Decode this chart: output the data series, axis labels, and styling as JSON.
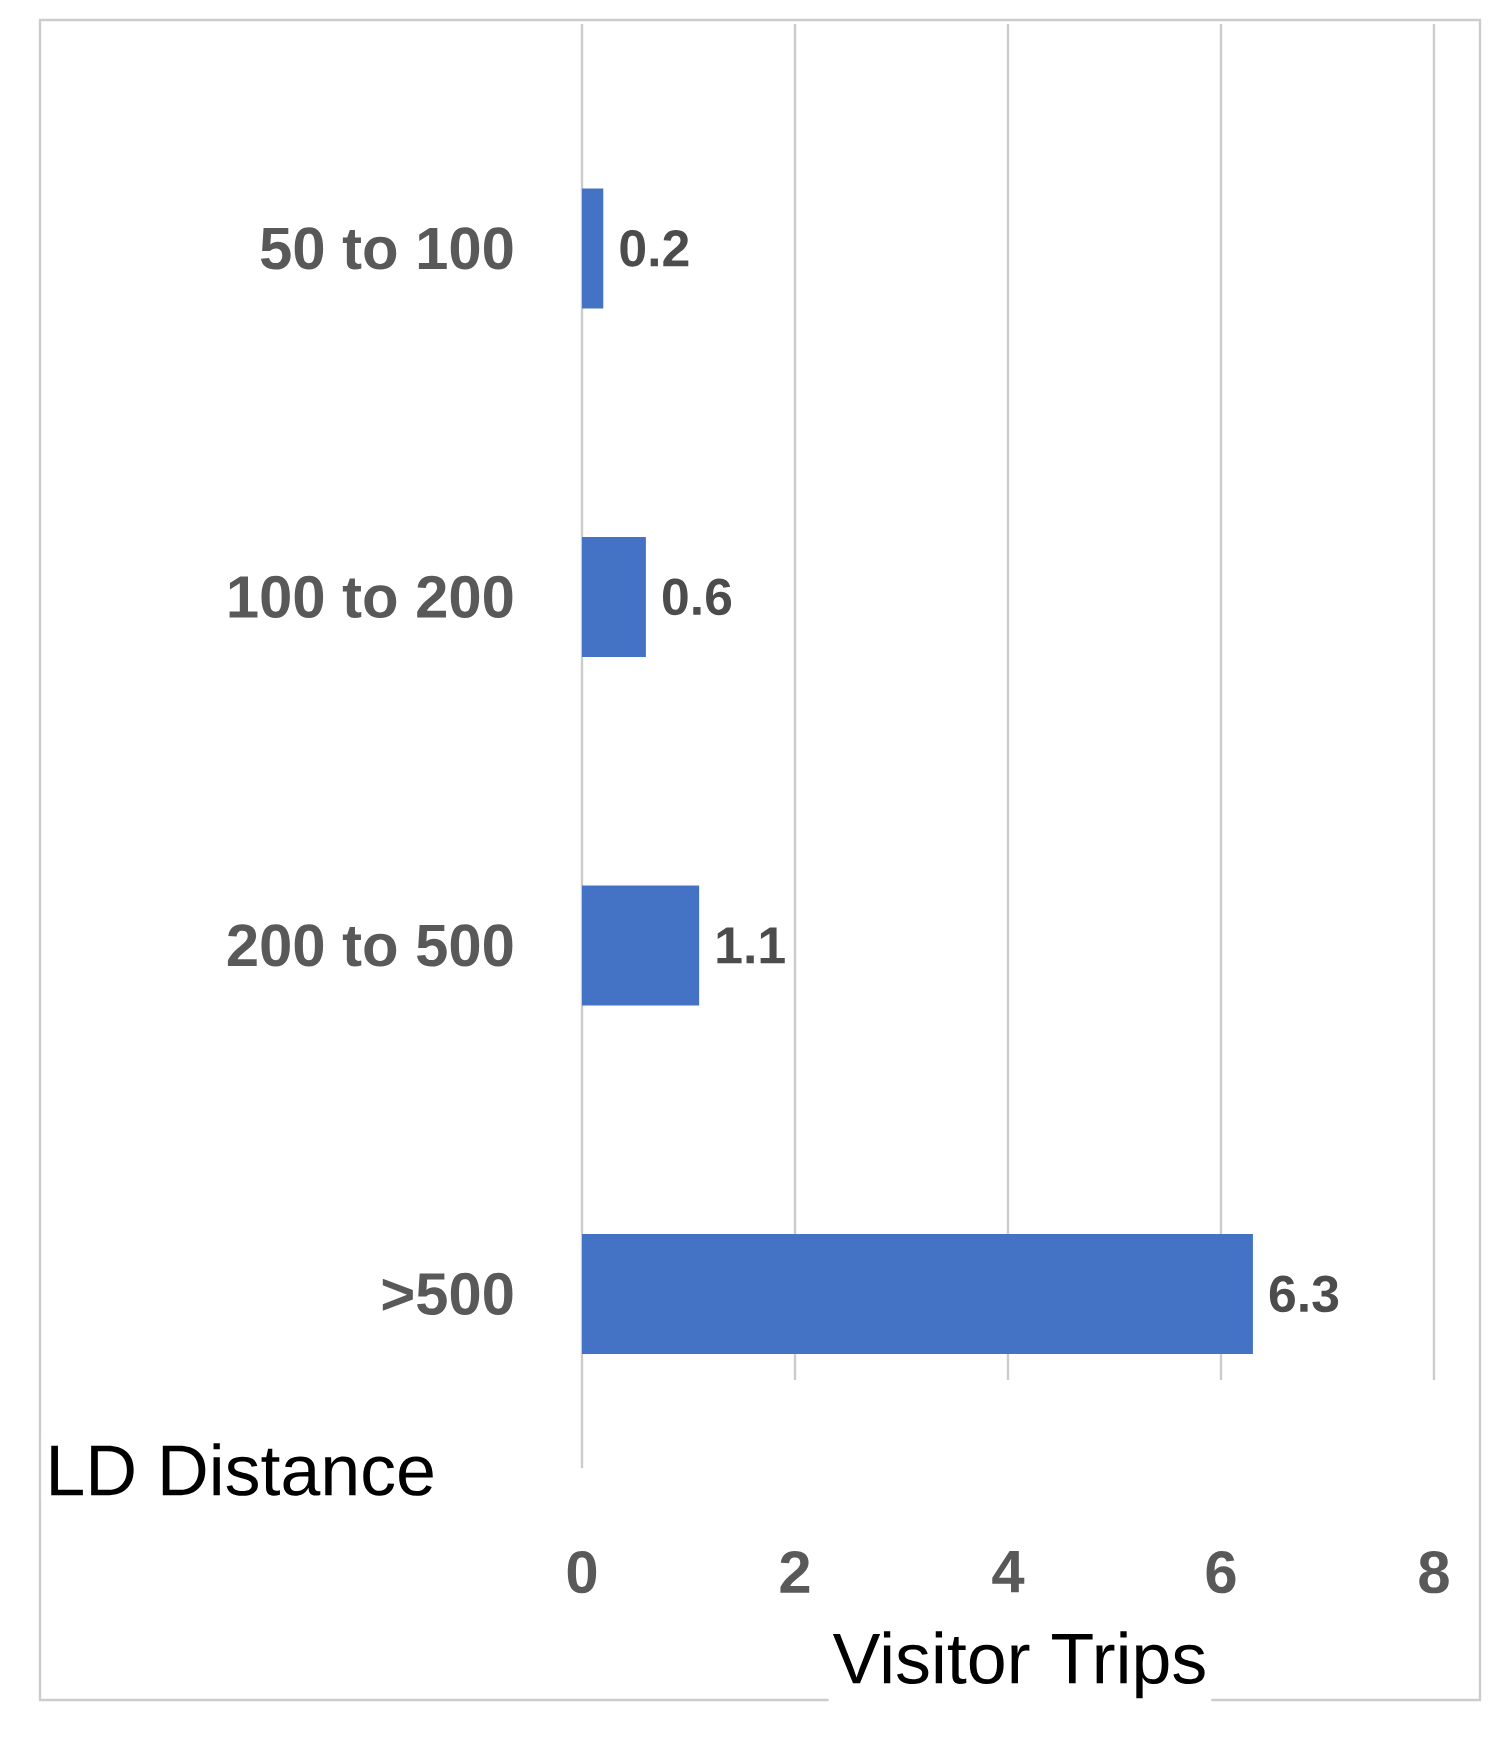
{
  "chart_data": {
    "type": "bar",
    "orientation": "horizontal",
    "categories": [
      "50 to 100",
      "100 to 200",
      "200 to 500",
      ">500"
    ],
    "values": [
      0.2,
      0.6,
      1.1,
      6.3
    ],
    "color": "#4472c4",
    "xlim": [
      0,
      8
    ],
    "xticks": [
      0,
      2,
      4,
      6,
      8
    ],
    "grid": "x",
    "data_labels": true,
    "xlabel": "Visitor Trips",
    "ylabel": "LD Distance"
  }
}
